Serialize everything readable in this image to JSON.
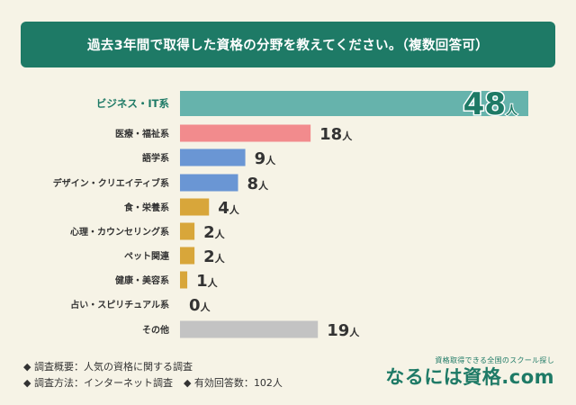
{
  "title": "過去3年間で取得した資格の分野を教えてください。（複数回答可）",
  "chart_data": {
    "type": "bar",
    "orientation": "horizontal",
    "categories": [
      "ビジネス・IT系",
      "医療・福祉系",
      "語学系",
      "デザイン・クリエイティブ系",
      "食・栄養系",
      "心理・カウンセリング系",
      "ペット関連",
      "健康・美容系",
      "占い・スピリチュアル系",
      "その他"
    ],
    "values": [
      48,
      18,
      9,
      8,
      4,
      2,
      2,
      1,
      0,
      19
    ],
    "value_unit": "人",
    "colors": [
      "#66b3ac",
      "#f28b8d",
      "#6a96d4",
      "#6a96d4",
      "#d8a63a",
      "#d8a63a",
      "#d8a63a",
      "#d8a63a",
      "#d8a63a",
      "#c3c3c3"
    ],
    "highlight_index": 0,
    "xlim": [
      0,
      48
    ],
    "grid": false,
    "legend": "none"
  },
  "notes": {
    "survey_overview_label": "◆ 調査概要：",
    "survey_overview": "人気の資格に関する調査",
    "survey_method_label": "◆ 調査方法：",
    "survey_method": "インターネット調査",
    "responses_label": "◆ 有効回答数：",
    "responses": "102人"
  },
  "brand": {
    "tagline": "資格取得できる全国のスクール探し",
    "name": "なるには資格.com"
  },
  "colors": {
    "background": "#f6f3e6",
    "title_box": "#1e7a66",
    "accent": "#1e7a66"
  }
}
